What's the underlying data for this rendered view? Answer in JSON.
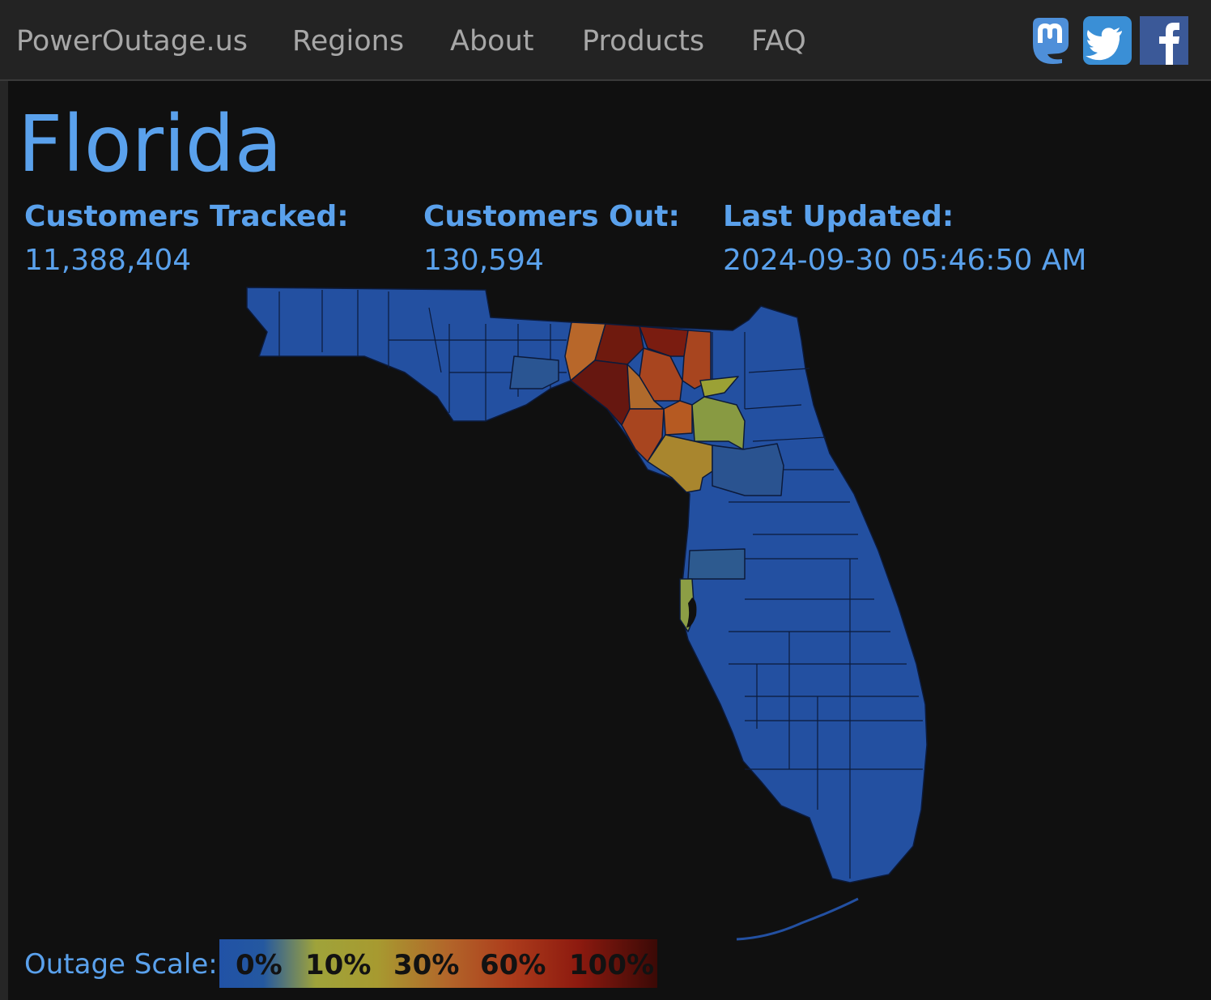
{
  "nav": {
    "brand": "PowerOutage.us",
    "links": [
      "Regions",
      "About",
      "Products",
      "FAQ"
    ],
    "social": [
      "mastodon-icon",
      "twitter-icon",
      "facebook-icon"
    ]
  },
  "page": {
    "title": "Florida",
    "stats": {
      "tracked_label": "Customers Tracked:",
      "tracked_value": "11,388,404",
      "out_label": "Customers Out:",
      "out_value": "130,594",
      "updated_label": "Last Updated:",
      "updated_value": "2024-09-30 05:46:50 AM"
    }
  },
  "scale": {
    "label": "Outage Scale:",
    "ticks": [
      "0%",
      "10%",
      "30%",
      "60%",
      "100%"
    ]
  },
  "colors": {
    "accent": "#5aa1ec",
    "nav_bg": "#232323",
    "page_bg": "#101010",
    "map_base": "#2350a1",
    "map_border": "#0c1a3a"
  }
}
